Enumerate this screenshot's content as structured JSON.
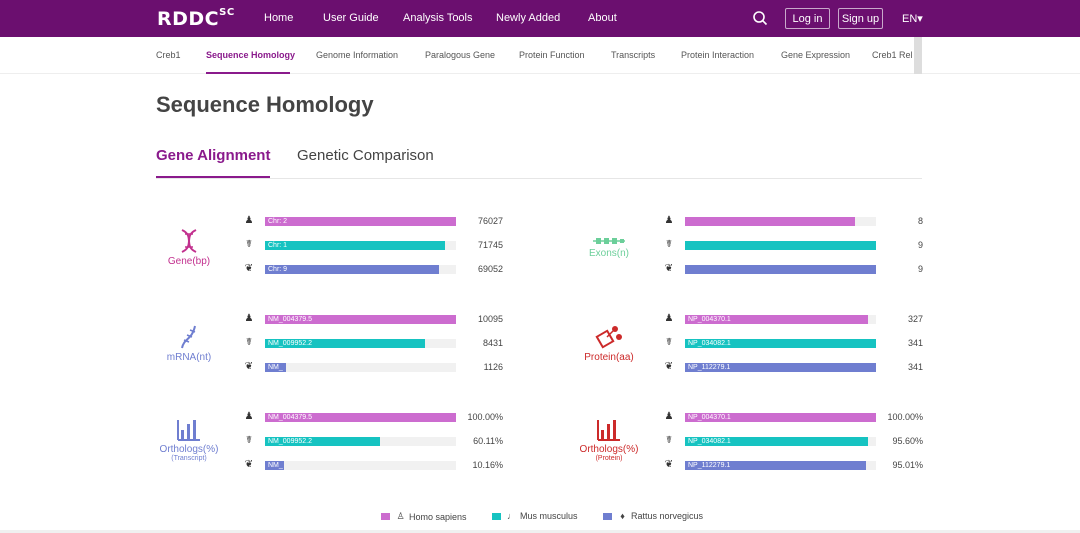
{
  "brand": {
    "name": "RDDC",
    "sup": "SC"
  },
  "topnav": {
    "items": [
      "Home",
      "User Guide",
      "Analysis Tools",
      "Newly Added",
      "About"
    ],
    "login": "Log in",
    "signup": "Sign up",
    "lang": "EN▾"
  },
  "subnav": {
    "items": [
      "Creb1",
      "Sequence Homology",
      "Genome Information",
      "Paralogous Gene",
      "Protein Function",
      "Transcripts",
      "Protein Interaction",
      "Gene Expression",
      "Creb1 Rel >"
    ]
  },
  "page_title": "Sequence Homology",
  "tabs": [
    "Gene Alignment",
    "Genetic Comparison"
  ],
  "colors": {
    "human": "#cc6ccf",
    "mouse": "#16c3c1",
    "rat": "#6f7ed0",
    "brand": "#6b0f6f"
  },
  "species_icons": [
    "human-icon",
    "mouse-icon",
    "rat-icon"
  ],
  "panels": {
    "gene": {
      "title": "Gene(bp)",
      "rows": [
        {
          "label": "Chr: 2",
          "value": "76027",
          "fraction": 1.0
        },
        {
          "label": "Chr: 1",
          "value": "71745",
          "fraction": 0.94
        },
        {
          "label": "Chr: 9",
          "value": "69052",
          "fraction": 0.91
        }
      ]
    },
    "exons": {
      "title": "Exons(n)",
      "rows": [
        {
          "label": "",
          "value": "8",
          "fraction": 0.89
        },
        {
          "label": "",
          "value": "9",
          "fraction": 1.0
        },
        {
          "label": "",
          "value": "9",
          "fraction": 1.0
        }
      ]
    },
    "mrna": {
      "title": "mRNA(nt)",
      "rows": [
        {
          "label": "NM_004379.5",
          "value": "10095",
          "fraction": 1.0
        },
        {
          "label": "NM_009952.2",
          "value": "8431",
          "fraction": 0.84
        },
        {
          "label": "NM_",
          "value": "1126",
          "fraction": 0.11
        }
      ]
    },
    "protein": {
      "title": "Protein(aa)",
      "rows": [
        {
          "label": "NP_004370.1",
          "value": "327",
          "fraction": 0.96
        },
        {
          "label": "NP_034082.1",
          "value": "341",
          "fraction": 1.0
        },
        {
          "label": "NP_112279.1",
          "value": "341",
          "fraction": 1.0
        }
      ]
    },
    "orthologs_transcript": {
      "title": "Orthologs(%)",
      "sub": "(Transcript)",
      "rows": [
        {
          "label": "NM_004379.5",
          "value": "100.00%",
          "fraction": 1.0
        },
        {
          "label": "NM_009952.2",
          "value": "60.11%",
          "fraction": 0.6011
        },
        {
          "label": "NM_",
          "value": "10.16%",
          "fraction": 0.1016
        }
      ]
    },
    "orthologs_protein": {
      "title": "Orthologs(%)",
      "sub": "(Protein)",
      "rows": [
        {
          "label": "NP_004370.1",
          "value": "100.00%",
          "fraction": 1.0
        },
        {
          "label": "NP_034082.1",
          "value": "95.60%",
          "fraction": 0.956
        },
        {
          "label": "NP_112279.1",
          "value": "95.01%",
          "fraction": 0.9501
        }
      ]
    }
  },
  "legend": [
    "Homo sapiens",
    "Mus musculus",
    "Rattus norvegicus"
  ]
}
